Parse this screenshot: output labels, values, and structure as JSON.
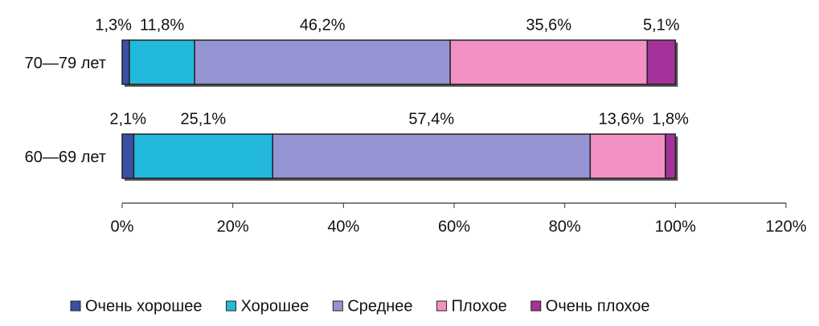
{
  "chart_data": {
    "type": "stacked-barh",
    "categories": [
      "70—79 лет",
      "60—69 лет"
    ],
    "series": [
      {
        "name": "Очень хорошее",
        "color": "#3b4fa3",
        "values": [
          1.3,
          2.1
        ],
        "value_labels": [
          "1,3%",
          "2,1%"
        ]
      },
      {
        "name": "Хорошее",
        "color": "#22b9dc",
        "values": [
          11.8,
          25.1
        ],
        "value_labels": [
          "11,8%",
          "25,1%"
        ]
      },
      {
        "name": "Среднее",
        "color": "#9494d2",
        "values": [
          46.2,
          57.4
        ],
        "value_labels": [
          "46,2%",
          "57,4%"
        ]
      },
      {
        "name": "Плохое",
        "color": "#f292c4",
        "values": [
          35.6,
          13.6
        ],
        "value_labels": [
          "35,6%",
          "13,6%"
        ]
      },
      {
        "name": "Очень плохое",
        "color": "#a4329a",
        "values": [
          5.1,
          1.8
        ],
        "value_labels": [
          "5,1%",
          "1,8%"
        ]
      }
    ],
    "xlim": [
      0,
      120
    ],
    "xticks": [
      {
        "value": 0,
        "label": "0%"
      },
      {
        "value": 20,
        "label": "20%"
      },
      {
        "value": 40,
        "label": "40%"
      },
      {
        "value": 60,
        "label": "60%"
      },
      {
        "value": 80,
        "label": "80%"
      },
      {
        "value": 100,
        "label": "100%"
      },
      {
        "value": 120,
        "label": "120%"
      }
    ],
    "legend": "bottom"
  }
}
